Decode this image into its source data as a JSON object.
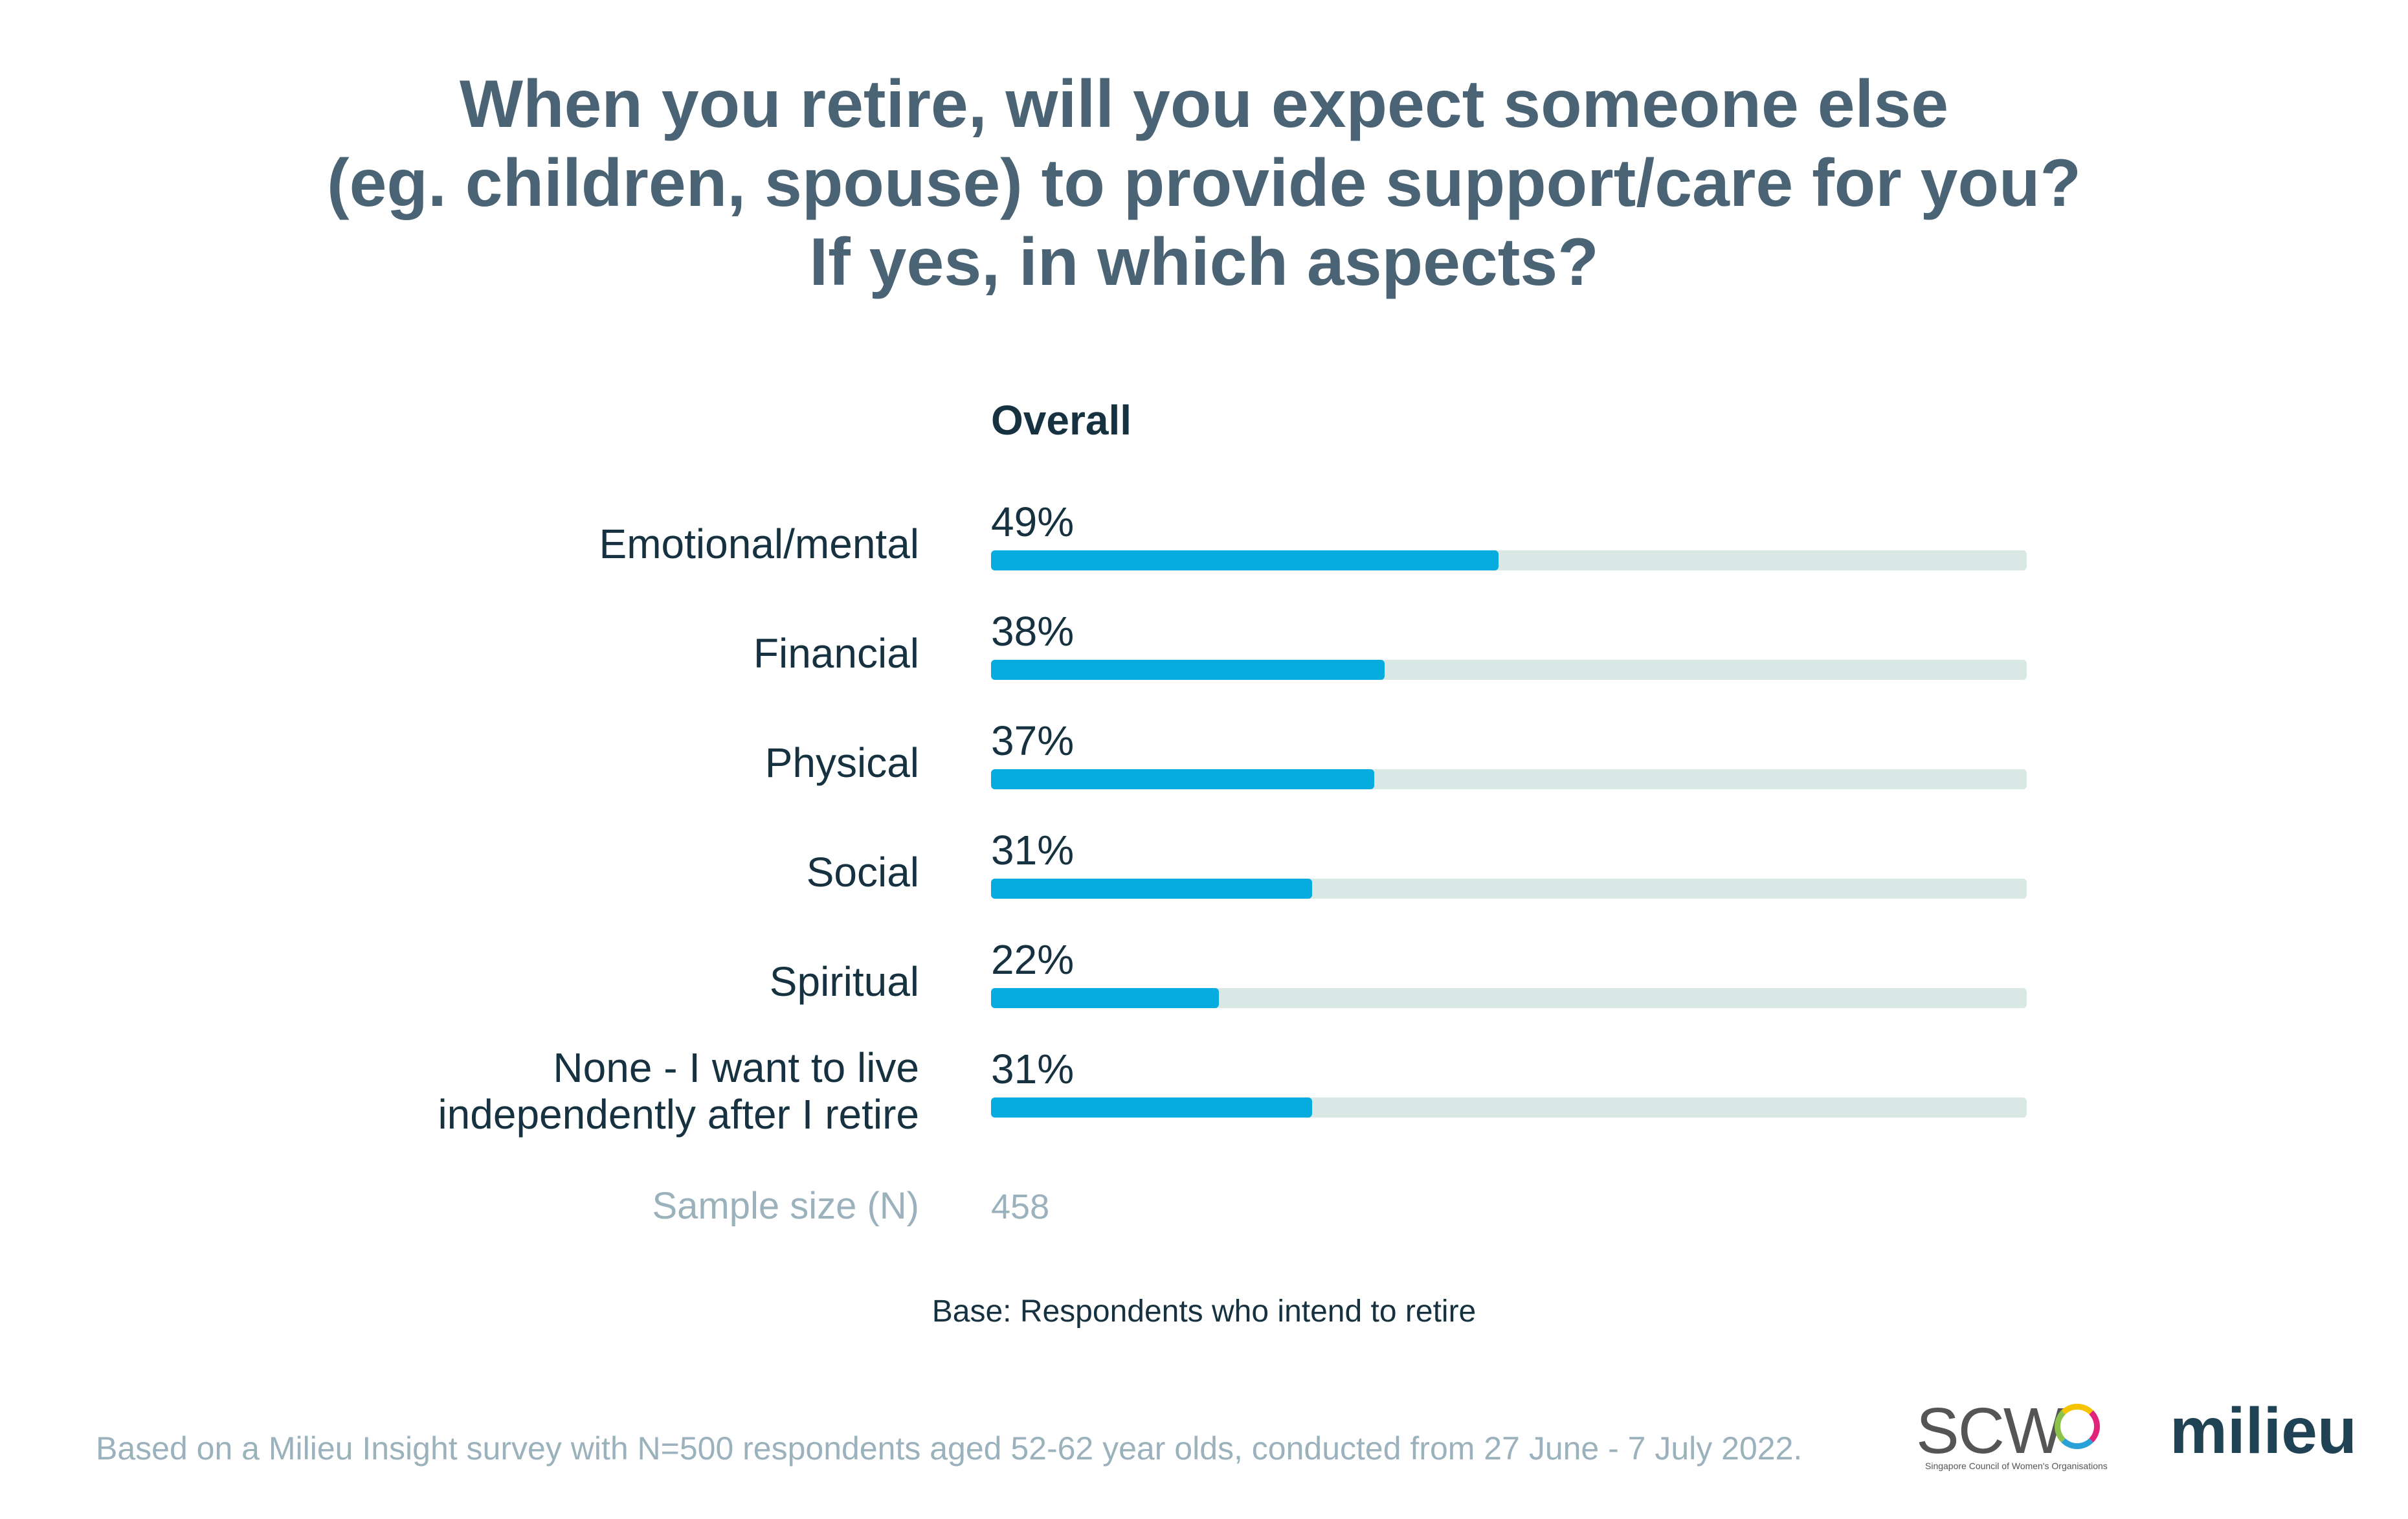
{
  "title_lines": [
    "When you retire, will you expect someone else",
    "(eg. children, spouse) to provide support/care for you?",
    "If yes, in which aspects?"
  ],
  "chart_data": {
    "type": "bar",
    "orientation": "horizontal",
    "title": "When you retire, will you expect someone else (eg. children, spouse) to provide support/care for you? If yes, in which aspects?",
    "series": [
      {
        "name": "Overall",
        "values": [
          49,
          38,
          37,
          31,
          22,
          31
        ],
        "value_labels": [
          "49%",
          "38%",
          "37%",
          "31%",
          "22%",
          "31%"
        ]
      }
    ],
    "categories": [
      [
        "Emotional/mental"
      ],
      [
        "Financial"
      ],
      [
        "Physical"
      ],
      [
        "Social"
      ],
      [
        "Spiritual"
      ],
      [
        "None - I want to live",
        "independently after I retire"
      ]
    ],
    "xlim": [
      0,
      100
    ],
    "unit": "%",
    "sample_size_label": "Sample size (N)",
    "sample_size": "458"
  },
  "base_note": "Base: Respondents who intend to retire",
  "footnote": "Based on a Milieu Insight survey with N=500 respondents aged 52-62 year olds, conducted from 27 June - 7 July 2022.",
  "logos": {
    "scwo_text": "SCW",
    "scwo_subtitle": "Singapore Council of Women's Organisations",
    "milieu_text": "milieu"
  },
  "colors": {
    "bar_fill": "#06ace0",
    "bar_track": "#d9e8e5",
    "title": "#4b6475",
    "text": "#16313f",
    "muted": "#9bb2bd"
  }
}
